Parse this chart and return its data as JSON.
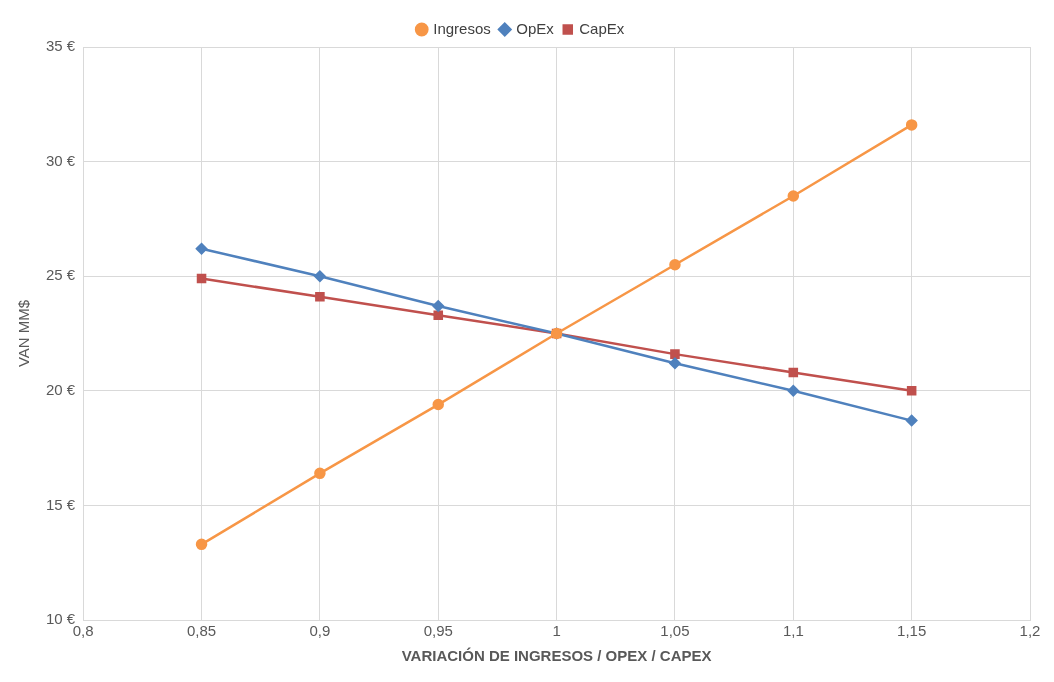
{
  "chart_data": {
    "type": "line",
    "xlabel": "VARIACIÓN DE INGRESOS / OPEX / CAPEX",
    "ylabel": "VAN MM$",
    "x": [
      0.85,
      0.9,
      0.95,
      1,
      1.05,
      1.1,
      1.15
    ],
    "xlim": [
      0.8,
      1.2
    ],
    "xticks": [
      {
        "value": 0.8,
        "label": "0,8"
      },
      {
        "value": 0.85,
        "label": "0,85"
      },
      {
        "value": 0.9,
        "label": "0,9"
      },
      {
        "value": 0.95,
        "label": "0,95"
      },
      {
        "value": 1,
        "label": "1"
      },
      {
        "value": 1.05,
        "label": "1,05"
      },
      {
        "value": 1.1,
        "label": "1,1"
      },
      {
        "value": 1.15,
        "label": "1,15"
      },
      {
        "value": 1.2,
        "label": "1,2"
      }
    ],
    "ylim": [
      10,
      35
    ],
    "yticks": [
      {
        "value": 10,
        "label": "10 €"
      },
      {
        "value": 15,
        "label": "15 €"
      },
      {
        "value": 20,
        "label": "20 €"
      },
      {
        "value": 25,
        "label": "25 €"
      },
      {
        "value": 30,
        "label": "30 €"
      },
      {
        "value": 35,
        "label": "35 €"
      }
    ],
    "grid": true,
    "legend": "top",
    "line_style": "solid",
    "series": [
      {
        "name": "Ingresos",
        "color": "#f79646",
        "marker": "circle",
        "values": [
          13.3,
          16.4,
          19.4,
          22.5,
          25.5,
          28.5,
          31.6
        ]
      },
      {
        "name": "OpEx",
        "color": "#4f81bd",
        "marker": "diamond",
        "values": [
          26.2,
          25.0,
          23.7,
          22.5,
          21.2,
          20.0,
          18.7
        ]
      },
      {
        "name": "CapEx",
        "color": "#c0504d",
        "marker": "square",
        "values": [
          24.9,
          24.1,
          23.3,
          22.5,
          21.6,
          20.8,
          20.0
        ]
      }
    ]
  }
}
